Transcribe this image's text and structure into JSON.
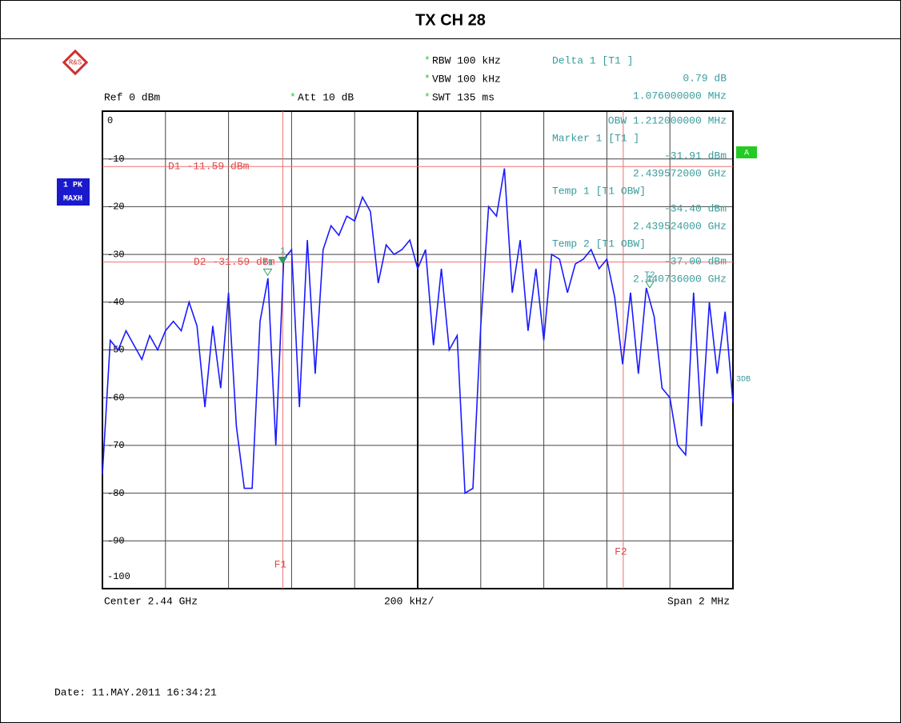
{
  "chart_data": {
    "type": "line",
    "title": "TX CH 28",
    "settings": {
      "ref": "Ref  0 dBm",
      "att": "Att  10 dB",
      "rbw": "RBW 100 kHz",
      "vbw": "VBW 100 kHz",
      "swt": "SWT 135 ms"
    },
    "marker_info": [
      {
        "text": "Delta 1 [T1 ]",
        "align": "left"
      },
      {
        "text": "0.79 dB",
        "align": "right"
      },
      {
        "text": "1.076000000 MHz",
        "align": "right"
      },
      {
        "text": "OBW  1.212000000 MHz",
        "align": "right"
      },
      {
        "text": "Marker 1 [T1 ]",
        "align": "left"
      },
      {
        "text": "-31.91 dBm",
        "align": "right"
      },
      {
        "text": "2.439572000 GHz",
        "align": "right"
      },
      {
        "text": "Temp 1 [T1 OBW]",
        "align": "left"
      },
      {
        "text": "-34.40 dBm",
        "align": "right"
      },
      {
        "text": "2.439524000 GHz",
        "align": "right"
      },
      {
        "text": "Temp 2 [T1 OBW]",
        "align": "left"
      },
      {
        "text": "-37.00 dBm",
        "align": "right"
      },
      {
        "text": "2.440736000 GHz",
        "align": "right"
      }
    ],
    "trace_labels": [
      "1 PK",
      "MAXH"
    ],
    "screen_label": "A",
    "side_label": "3DB",
    "x_footer": {
      "center": "Center 2.44 GHz",
      "div": "200 kHz/",
      "span": "Span 2 MHz"
    },
    "date": "Date: 11.MAY.2011  16:34:21",
    "xlim": [
      2.439,
      2.441
    ],
    "xticks": [
      2.439,
      2.4392,
      2.4394,
      2.4396,
      2.4398,
      2.44,
      2.4402,
      2.4404,
      2.4406,
      2.4408,
      2.441
    ],
    "ylim": [
      -100,
      0
    ],
    "yticks": [
      0,
      -10,
      -20,
      -30,
      -40,
      -50,
      -60,
      -70,
      -80,
      -90,
      -100
    ],
    "grid": true,
    "display_lines": [
      {
        "label": "D1 -11.59 dBm",
        "value": -11.59
      },
      {
        "label": "D2 -31.59 dBm",
        "value": -31.59
      }
    ],
    "frequency_lines": [
      {
        "label": "F1",
        "value": 2.439572
      },
      {
        "label": "F2",
        "value": 2.440652
      }
    ],
    "markers": [
      {
        "label": "1",
        "x": 2.439572,
        "y": -31.91
      },
      {
        "label": "T1",
        "x": 2.439524,
        "y": -34.4
      },
      {
        "label": "T2",
        "x": 2.440736,
        "y": -37
      }
    ],
    "x": [
      2.439,
      2.439025,
      2.43905,
      2.439075,
      2.4391,
      2.439125,
      2.43915,
      2.439175,
      2.4392,
      2.439225,
      2.43925,
      2.439275,
      2.4393,
      2.439325,
      2.43935,
      2.439375,
      2.4394,
      2.439425,
      2.43945,
      2.439475,
      2.4395,
      2.439525,
      2.43955,
      2.439575,
      2.4396,
      2.439625,
      2.43965,
      2.439675,
      2.4397,
      2.439725,
      2.43975,
      2.439775,
      2.4398,
      2.439825,
      2.43985,
      2.439875,
      2.4399,
      2.439925,
      2.43995,
      2.439975,
      2.44,
      2.440025,
      2.44005,
      2.440075,
      2.4401,
      2.440125,
      2.44015,
      2.440175,
      2.4402,
      2.440225,
      2.44025,
      2.440275,
      2.4403,
      2.440325,
      2.44035,
      2.440375,
      2.4404,
      2.440425,
      2.44045,
      2.440475,
      2.4405,
      2.440525,
      2.44055,
      2.440575,
      2.4406,
      2.440625,
      2.44065,
      2.440675,
      2.4407,
      2.440725,
      2.44075,
      2.440775,
      2.4408,
      2.440825,
      2.44085,
      2.440875,
      2.4409,
      2.440925,
      2.44095,
      2.440975,
      2.441
    ],
    "series": [
      {
        "color": "#1a1aff",
        "values": [
          -76,
          -48,
          -50,
          -46,
          -49,
          -52,
          -47,
          -50,
          -46,
          -44,
          -46,
          -40,
          -45,
          -62,
          -45,
          -58,
          -38,
          -66,
          -79,
          -79,
          -44,
          -35,
          -70,
          -31,
          -29,
          -62,
          -27,
          -55,
          -29,
          -24,
          -26,
          -22,
          -23,
          -18,
          -21,
          -36,
          -28,
          -30,
          -29,
          -27,
          -33,
          -29,
          -49,
          -33,
          -50,
          -47,
          -80,
          -79,
          -45,
          -20,
          -22,
          -12,
          -38,
          -27,
          -46,
          -33,
          -48,
          -30,
          -31,
          -38,
          -32,
          -31,
          -29,
          -33,
          -31,
          -39,
          -53,
          -38,
          -55,
          -37,
          -43,
          -58,
          -60,
          -70,
          -72,
          -38,
          -66,
          -40,
          -55,
          -42,
          -61
        ]
      }
    ]
  }
}
